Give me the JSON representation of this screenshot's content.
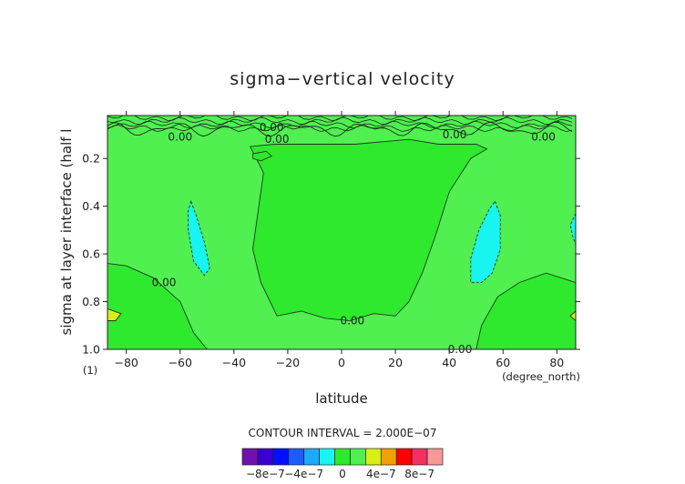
{
  "chart_data": {
    "type": "heatmap",
    "title": "sigma−vertical velocity",
    "xlabel": "latitude",
    "ylabel": "sigma at layer interface (half l",
    "x_unit": "(degree_north)",
    "y_unit": "(1)",
    "xlim": [
      -87,
      87
    ],
    "ylim": [
      0.02,
      1.0
    ],
    "y_inverted": true,
    "x_ticks": [
      -80,
      -60,
      -40,
      -20,
      0,
      20,
      40,
      60,
      80
    ],
    "x_tick_labels": [
      "−80",
      "−60",
      "−40",
      "−20",
      "0",
      "20",
      "40",
      "60",
      "80"
    ],
    "y_ticks": [
      0.2,
      0.4,
      0.6,
      0.8,
      1.0
    ],
    "y_tick_labels": [
      "0.2",
      "0.4",
      "0.6",
      "0.8",
      "1.0"
    ],
    "contour_interval_text": "CONTOUR INTERVAL = 2.000E−07",
    "contour_label": "0.00",
    "contour_labels": [
      {
        "text": "0.00",
        "x": -26,
        "y": 0.07
      },
      {
        "text": "0.00",
        "x": -60,
        "y": 0.11
      },
      {
        "text": "0.00",
        "x": -24,
        "y": 0.12
      },
      {
        "text": "0.00",
        "x": 42,
        "y": 0.1
      },
      {
        "text": "0.00",
        "x": 75,
        "y": 0.11
      },
      {
        "text": "0.00",
        "x": -66,
        "y": 0.72
      },
      {
        "text": "0.00",
        "x": 4,
        "y": 0.88
      },
      {
        "text": "0.00",
        "x": 44,
        "y": 1.0
      }
    ],
    "regions": [
      {
        "name": "positive",
        "level": "0 to 2e-7",
        "color": "#4ff050",
        "polygon": [
          [
            -87,
            0.02
          ],
          [
            87,
            0.02
          ],
          [
            87,
            1.0
          ],
          [
            -87,
            1.0
          ]
        ]
      },
      {
        "name": "near-zero-negative",
        "level": "-2e-7 to 0",
        "color": "#2ee92e",
        "polygon": [
          [
            -34,
            0.15
          ],
          [
            -29,
            0.26
          ],
          [
            -31,
            0.42
          ],
          [
            -33,
            0.58
          ],
          [
            -30,
            0.72
          ],
          [
            -24,
            0.86
          ],
          [
            -15,
            0.84
          ],
          [
            -6,
            0.87
          ],
          [
            3,
            0.88
          ],
          [
            12,
            0.85
          ],
          [
            20,
            0.86
          ],
          [
            25,
            0.8
          ],
          [
            30,
            0.68
          ],
          [
            35,
            0.52
          ],
          [
            40,
            0.34
          ],
          [
            48,
            0.2
          ],
          [
            54,
            0.16
          ],
          [
            50,
            0.14
          ],
          [
            36,
            0.14
          ],
          [
            25,
            0.12
          ],
          [
            5,
            0.14
          ],
          [
            -15,
            0.14
          ],
          [
            -25,
            0.14
          ]
        ]
      },
      {
        "name": "sw-lobe",
        "level": "-2e-7 to 0",
        "color": "#2ee92e",
        "polygon": [
          [
            -87,
            0.64
          ],
          [
            -80,
            0.65
          ],
          [
            -70,
            0.7
          ],
          [
            -60,
            0.8
          ],
          [
            -55,
            0.93
          ],
          [
            -50,
            1.0
          ],
          [
            -87,
            1.0
          ]
        ]
      },
      {
        "name": "se-lobe",
        "level": "-2e-7 to 0",
        "color": "#2ee92e",
        "polygon": [
          [
            50,
            1.0
          ],
          [
            52,
            0.9
          ],
          [
            58,
            0.78
          ],
          [
            66,
            0.72
          ],
          [
            76,
            0.68
          ],
          [
            87,
            0.72
          ],
          [
            87,
            1.0
          ]
        ]
      },
      {
        "name": "neg-left",
        "level": "-4e-7 to -2e-7",
        "color": "#18f4ef",
        "polygon": [
          [
            -56,
            0.38
          ],
          [
            -54,
            0.44
          ],
          [
            -51,
            0.55
          ],
          [
            -49,
            0.66
          ],
          [
            -51,
            0.69
          ],
          [
            -55,
            0.63
          ],
          [
            -57,
            0.5
          ],
          [
            -57,
            0.42
          ]
        ]
      },
      {
        "name": "neg-right",
        "level": "-4e-7 to -2e-7",
        "color": "#18f4ef",
        "polygon": [
          [
            57,
            0.38
          ],
          [
            59,
            0.44
          ],
          [
            59,
            0.58
          ],
          [
            56,
            0.68
          ],
          [
            52,
            0.72
          ],
          [
            48,
            0.72
          ],
          [
            48,
            0.62
          ],
          [
            51,
            0.5
          ],
          [
            55,
            0.41
          ]
        ]
      },
      {
        "name": "neg-edge",
        "level": "-4e-7 to -2e-7",
        "color": "#18f4ef",
        "polygon": [
          [
            87,
            0.43
          ],
          [
            85,
            0.48
          ],
          [
            86,
            0.53
          ],
          [
            87,
            0.56
          ]
        ]
      },
      {
        "name": "pos-left-corner",
        "level": "4e-7 to 6e-7",
        "color": "#d8ee18",
        "polygon": [
          [
            -87,
            0.83
          ],
          [
            -82,
            0.85
          ],
          [
            -84,
            0.88
          ],
          [
            -87,
            0.88
          ]
        ]
      },
      {
        "name": "pos-right-corner",
        "level": "4e-7 to 6e-7",
        "color": "#d8ee18",
        "polygon": [
          [
            87,
            0.84
          ],
          [
            85,
            0.86
          ],
          [
            87,
            0.88
          ]
        ]
      },
      {
        "name": "small-blob",
        "level": "-2e-7 to 0",
        "color": "#2ee92e",
        "polygon": [
          [
            -33,
            0.18
          ],
          [
            -28,
            0.17
          ],
          [
            -26,
            0.19
          ],
          [
            -30,
            0.21
          ],
          [
            -33,
            0.2
          ]
        ]
      }
    ],
    "top_band": {
      "description_y": [
        0.02,
        0.1
      ],
      "color": "#2ee92e"
    },
    "colorbar": {
      "colors": [
        "#7010b0",
        "#3a00d0",
        "#0010ff",
        "#1a5cff",
        "#1ea8ff",
        "#18f4ef",
        "#2ee92e",
        "#4ff050",
        "#d8ee18",
        "#f0a000",
        "#ff0000",
        "#f03060",
        "#f89898"
      ],
      "labels": [
        "−8e−7",
        "−4e−7",
        "0",
        "4e−7",
        "8e−7"
      ]
    }
  }
}
